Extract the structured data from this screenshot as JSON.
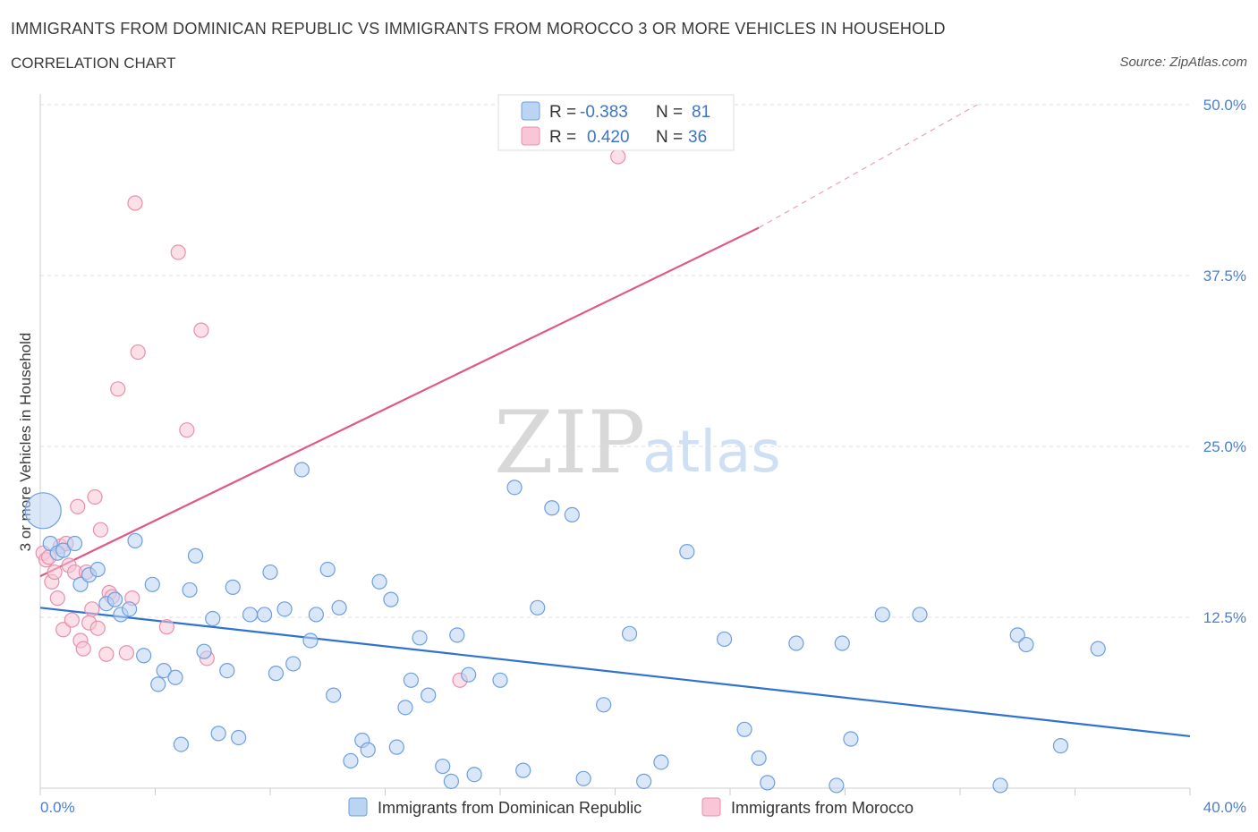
{
  "header": {
    "title": "IMMIGRANTS FROM DOMINICAN REPUBLIC VS IMMIGRANTS FROM MOROCCO 3 OR MORE VEHICLES IN HOUSEHOLD",
    "subtitle": "CORRELATION CHART",
    "source": "Source: ZipAtlas.com"
  },
  "watermark": {
    "zip": "ZIP",
    "atlas": "atlas"
  },
  "legend": {
    "r_label": "R =",
    "n_label": "N =",
    "series1": {
      "r": "-0.383",
      "n": "81"
    },
    "series2": {
      "r": "0.420",
      "n": "36"
    }
  },
  "colors": {
    "blue_fill": "#bcd4f4",
    "blue_stroke": "#6d9fe0",
    "blue_line": "#2f72d0",
    "pink_fill": "#f8c6d6",
    "pink_stroke": "#e88fae",
    "pink_line": "#e0588a",
    "grid": "#dddddd",
    "axis": "#cccccc"
  },
  "chart_data": {
    "type": "scatter",
    "title": "IMMIGRANTS FROM DOMINICAN REPUBLIC VS IMMIGRANTS FROM MOROCCO 3 OR MORE VEHICLES IN HOUSEHOLD",
    "xlabel": "",
    "ylabel": "3 or more Vehicles in Household",
    "xlim": [
      0,
      40
    ],
    "ylim": [
      0,
      50
    ],
    "x_tick_labels": [
      "0.0%",
      "40.0%"
    ],
    "y_ticks": [
      12.5,
      25.0,
      37.5,
      50.0
    ],
    "y_tick_labels": [
      "12.5%",
      "25.0%",
      "37.5%",
      "50.0%"
    ],
    "legend_position": "top-center",
    "series": [
      {
        "name": "Immigrants from Dominican Republic",
        "color": "#6d9fe0",
        "trend": {
          "x0": 0,
          "y0": 13.2,
          "x1": 40,
          "y1": 3.8,
          "dashed_from": null
        },
        "points": [
          {
            "x": 0.1,
            "y": 20.3,
            "big": true
          },
          {
            "x": 0.35,
            "y": 17.9
          },
          {
            "x": 0.6,
            "y": 17.2
          },
          {
            "x": 0.8,
            "y": 17.4
          },
          {
            "x": 1.2,
            "y": 17.9
          },
          {
            "x": 1.4,
            "y": 14.9
          },
          {
            "x": 1.7,
            "y": 15.6
          },
          {
            "x": 2.0,
            "y": 16.0
          },
          {
            "x": 2.3,
            "y": 13.5
          },
          {
            "x": 2.6,
            "y": 13.8
          },
          {
            "x": 2.8,
            "y": 12.7
          },
          {
            "x": 3.1,
            "y": 13.1
          },
          {
            "x": 3.3,
            "y": 18.1
          },
          {
            "x": 3.6,
            "y": 9.7
          },
          {
            "x": 3.9,
            "y": 14.9
          },
          {
            "x": 4.1,
            "y": 7.6
          },
          {
            "x": 4.3,
            "y": 8.6
          },
          {
            "x": 4.7,
            "y": 8.1
          },
          {
            "x": 4.9,
            "y": 3.2
          },
          {
            "x": 5.2,
            "y": 14.5
          },
          {
            "x": 5.4,
            "y": 17.0
          },
          {
            "x": 5.7,
            "y": 10.0
          },
          {
            "x": 6.0,
            "y": 12.4
          },
          {
            "x": 6.2,
            "y": 4.0
          },
          {
            "x": 6.5,
            "y": 8.6
          },
          {
            "x": 6.7,
            "y": 14.7
          },
          {
            "x": 6.9,
            "y": 3.7
          },
          {
            "x": 7.3,
            "y": 12.7
          },
          {
            "x": 7.8,
            "y": 12.7
          },
          {
            "x": 8.0,
            "y": 15.8
          },
          {
            "x": 8.2,
            "y": 8.4
          },
          {
            "x": 8.5,
            "y": 13.1
          },
          {
            "x": 8.8,
            "y": 9.1
          },
          {
            "x": 9.1,
            "y": 23.3
          },
          {
            "x": 9.4,
            "y": 10.8
          },
          {
            "x": 9.6,
            "y": 12.7
          },
          {
            "x": 10.0,
            "y": 16.0
          },
          {
            "x": 10.2,
            "y": 6.8
          },
          {
            "x": 10.4,
            "y": 13.2
          },
          {
            "x": 10.8,
            "y": 2.0
          },
          {
            "x": 11.2,
            "y": 3.5
          },
          {
            "x": 11.4,
            "y": 2.8
          },
          {
            "x": 11.8,
            "y": 15.1
          },
          {
            "x": 12.2,
            "y": 13.8
          },
          {
            "x": 12.4,
            "y": 3.0
          },
          {
            "x": 12.7,
            "y": 5.9
          },
          {
            "x": 12.9,
            "y": 7.9
          },
          {
            "x": 13.2,
            "y": 11.0
          },
          {
            "x": 13.5,
            "y": 6.8
          },
          {
            "x": 14.0,
            "y": 1.6
          },
          {
            "x": 14.3,
            "y": 0.5
          },
          {
            "x": 14.5,
            "y": 11.2
          },
          {
            "x": 14.9,
            "y": 8.3
          },
          {
            "x": 15.1,
            "y": 1.0
          },
          {
            "x": 16.0,
            "y": 7.9
          },
          {
            "x": 16.5,
            "y": 22.0
          },
          {
            "x": 16.8,
            "y": 1.3
          },
          {
            "x": 17.3,
            "y": 13.2
          },
          {
            "x": 17.8,
            "y": 20.5
          },
          {
            "x": 18.5,
            "y": 20.0
          },
          {
            "x": 18.9,
            "y": 0.7
          },
          {
            "x": 19.6,
            "y": 6.1
          },
          {
            "x": 20.5,
            "y": 11.3
          },
          {
            "x": 21.0,
            "y": 0.5
          },
          {
            "x": 21.6,
            "y": 1.9
          },
          {
            "x": 22.5,
            "y": 17.3
          },
          {
            "x": 23.8,
            "y": 10.9
          },
          {
            "x": 24.5,
            "y": 4.3
          },
          {
            "x": 25.0,
            "y": 2.2
          },
          {
            "x": 25.3,
            "y": 0.4
          },
          {
            "x": 26.3,
            "y": 10.6
          },
          {
            "x": 27.7,
            "y": 0.2
          },
          {
            "x": 27.9,
            "y": 10.6
          },
          {
            "x": 28.2,
            "y": 3.6
          },
          {
            "x": 29.3,
            "y": 12.7
          },
          {
            "x": 30.6,
            "y": 12.7
          },
          {
            "x": 33.4,
            "y": 0.2
          },
          {
            "x": 34.0,
            "y": 11.2
          },
          {
            "x": 34.3,
            "y": 10.5
          },
          {
            "x": 35.5,
            "y": 3.1
          },
          {
            "x": 36.8,
            "y": 10.2
          }
        ]
      },
      {
        "name": "Immigrants from Morocco",
        "color": "#e88fae",
        "trend": {
          "x0": 0,
          "y0": 15.5,
          "x1": 25,
          "y1": 41.0,
          "dashed_to_x": 32.6,
          "dashed_to_y": 50.0
        },
        "points": [
          {
            "x": 0.1,
            "y": 17.2
          },
          {
            "x": 0.2,
            "y": 16.7
          },
          {
            "x": 0.3,
            "y": 16.9
          },
          {
            "x": 0.4,
            "y": 15.1
          },
          {
            "x": 0.5,
            "y": 15.8
          },
          {
            "x": 0.6,
            "y": 13.9
          },
          {
            "x": 0.7,
            "y": 17.7
          },
          {
            "x": 0.8,
            "y": 11.6
          },
          {
            "x": 0.9,
            "y": 17.9
          },
          {
            "x": 1.0,
            "y": 16.3
          },
          {
            "x": 1.1,
            "y": 12.3
          },
          {
            "x": 1.2,
            "y": 15.8
          },
          {
            "x": 1.3,
            "y": 20.6
          },
          {
            "x": 1.4,
            "y": 10.8
          },
          {
            "x": 1.5,
            "y": 10.2
          },
          {
            "x": 1.6,
            "y": 15.8
          },
          {
            "x": 1.7,
            "y": 12.1
          },
          {
            "x": 1.8,
            "y": 13.1
          },
          {
            "x": 1.9,
            "y": 21.3
          },
          {
            "x": 2.0,
            "y": 11.7
          },
          {
            "x": 2.1,
            "y": 18.9
          },
          {
            "x": 2.3,
            "y": 9.8
          },
          {
            "x": 2.4,
            "y": 14.3
          },
          {
            "x": 2.5,
            "y": 14.0
          },
          {
            "x": 2.7,
            "y": 29.2
          },
          {
            "x": 3.0,
            "y": 9.9
          },
          {
            "x": 3.2,
            "y": 13.9
          },
          {
            "x": 3.3,
            "y": 42.8
          },
          {
            "x": 3.4,
            "y": 31.9
          },
          {
            "x": 4.4,
            "y": 11.8
          },
          {
            "x": 4.8,
            "y": 39.2
          },
          {
            "x": 5.1,
            "y": 26.2
          },
          {
            "x": 5.6,
            "y": 33.5
          },
          {
            "x": 5.8,
            "y": 9.5
          },
          {
            "x": 14.6,
            "y": 7.9
          },
          {
            "x": 20.1,
            "y": 46.2
          }
        ]
      }
    ]
  },
  "bottom_legend": {
    "series1": "Immigrants from Dominican Republic",
    "series2": "Immigrants from Morocco"
  }
}
